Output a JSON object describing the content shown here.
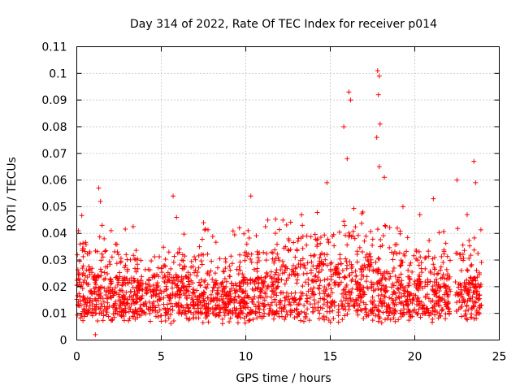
{
  "chart_data": {
    "type": "scatter",
    "title": "Day 314 of 2022, Rate Of TEC Index for receiver p014",
    "xlabel": "GPS time / hours",
    "ylabel": "ROTI / TECUs",
    "xlim": [
      0,
      25
    ],
    "ylim": [
      0,
      0.11
    ],
    "x_ticks": [
      0,
      5,
      10,
      15,
      20,
      25
    ],
    "x_tick_labels": [
      "0",
      "5",
      "10",
      "15",
      "20",
      "25"
    ],
    "y_ticks": [
      0,
      0.01,
      0.02,
      0.03,
      0.04,
      0.05,
      0.06,
      0.07,
      0.08,
      0.09,
      0.1,
      0.11
    ],
    "y_tick_labels": [
      "0",
      "0.01",
      "0.02",
      "0.03",
      "0.04",
      "0.05",
      "0.06",
      "0.07",
      "0.08",
      "0.09",
      "0.1",
      "0.11"
    ],
    "grid": true,
    "marker": "plus",
    "series_color": "#ff0000",
    "data_ranges_hours": [
      [
        0,
        22.1
      ],
      [
        22.4,
        23.95
      ]
    ],
    "typical_band": [
      0.006,
      0.025
    ],
    "peaks": [
      {
        "x": 0.1,
        "y": 0.041
      },
      {
        "x": 0.2,
        "y": 0.036
      },
      {
        "x": 1.3,
        "y": 0.057
      },
      {
        "x": 1.4,
        "y": 0.052
      },
      {
        "x": 1.5,
        "y": 0.043
      },
      {
        "x": 2.3,
        "y": 0.036
      },
      {
        "x": 5.7,
        "y": 0.054
      },
      {
        "x": 5.9,
        "y": 0.046
      },
      {
        "x": 7.5,
        "y": 0.044
      },
      {
        "x": 10.3,
        "y": 0.054
      },
      {
        "x": 11.3,
        "y": 0.045
      },
      {
        "x": 12.2,
        "y": 0.045
      },
      {
        "x": 14.8,
        "y": 0.059
      },
      {
        "x": 15.8,
        "y": 0.08
      },
      {
        "x": 16.1,
        "y": 0.093
      },
      {
        "x": 16.2,
        "y": 0.09
      },
      {
        "x": 16.0,
        "y": 0.068
      },
      {
        "x": 17.8,
        "y": 0.101
      },
      {
        "x": 17.9,
        "y": 0.099
      },
      {
        "x": 17.85,
        "y": 0.092
      },
      {
        "x": 17.95,
        "y": 0.081
      },
      {
        "x": 17.75,
        "y": 0.076
      },
      {
        "x": 17.9,
        "y": 0.065
      },
      {
        "x": 18.2,
        "y": 0.061
      },
      {
        "x": 19.3,
        "y": 0.05
      },
      {
        "x": 20.3,
        "y": 0.047
      },
      {
        "x": 21.1,
        "y": 0.053
      },
      {
        "x": 22.5,
        "y": 0.06
      },
      {
        "x": 23.1,
        "y": 0.047
      },
      {
        "x": 23.5,
        "y": 0.067
      },
      {
        "x": 23.6,
        "y": 0.059
      },
      {
        "x": 1.1,
        "y": 0.002
      }
    ]
  }
}
